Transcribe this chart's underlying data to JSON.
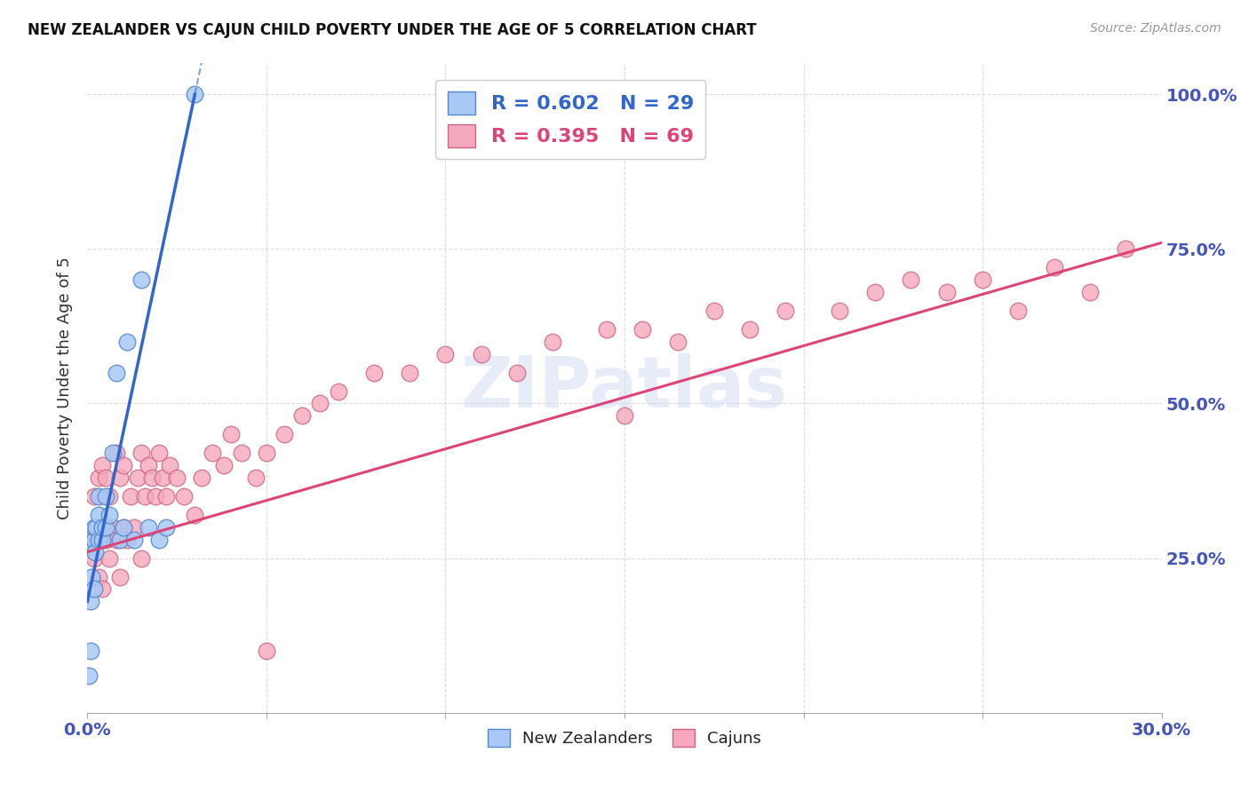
{
  "title": "NEW ZEALANDER VS CAJUN CHILD POVERTY UNDER THE AGE OF 5 CORRELATION CHART",
  "source": "Source: ZipAtlas.com",
  "ylabel": "Child Poverty Under the Age of 5",
  "watermark_text": "ZIPatlas",
  "nz_R": 0.602,
  "nz_N": 29,
  "cajun_R": 0.395,
  "cajun_N": 69,
  "nz_fill": "#a8c8f5",
  "nz_edge": "#5588cc",
  "cajun_fill": "#f5a8bb",
  "cajun_edge": "#cc6688",
  "nz_line_color": "#3366cc",
  "cajun_line_color": "#dd4477",
  "bg_color": "#ffffff",
  "title_color": "#111111",
  "source_color": "#999999",
  "axis_tick_color": "#4455bb",
  "ylabel_color": "#333333",
  "grid_color": "#dddddd",
  "xmin": 0.0,
  "xmax": 0.3,
  "ymin": 0.0,
  "ymax": 1.05,
  "nz_x": [
    0.0005,
    0.001,
    0.001,
    0.0012,
    0.0015,
    0.0018,
    0.002,
    0.002,
    0.0022,
    0.0025,
    0.003,
    0.003,
    0.0032,
    0.004,
    0.004,
    0.005,
    0.005,
    0.006,
    0.007,
    0.008,
    0.009,
    0.01,
    0.011,
    0.013,
    0.015,
    0.017,
    0.02,
    0.022,
    0.03
  ],
  "nz_y": [
    0.06,
    0.1,
    0.18,
    0.22,
    0.27,
    0.2,
    0.28,
    0.3,
    0.26,
    0.3,
    0.28,
    0.32,
    0.35,
    0.28,
    0.3,
    0.3,
    0.35,
    0.32,
    0.42,
    0.55,
    0.28,
    0.3,
    0.6,
    0.28,
    0.7,
    0.3,
    0.28,
    0.3,
    1.0
  ],
  "cajun_x": [
    0.001,
    0.002,
    0.002,
    0.003,
    0.003,
    0.004,
    0.004,
    0.005,
    0.005,
    0.006,
    0.006,
    0.007,
    0.008,
    0.008,
    0.009,
    0.009,
    0.01,
    0.01,
    0.011,
    0.012,
    0.013,
    0.014,
    0.015,
    0.015,
    0.016,
    0.017,
    0.018,
    0.019,
    0.02,
    0.021,
    0.022,
    0.023,
    0.025,
    0.027,
    0.03,
    0.032,
    0.035,
    0.038,
    0.04,
    0.043,
    0.047,
    0.05,
    0.055,
    0.06,
    0.065,
    0.07,
    0.08,
    0.09,
    0.1,
    0.11,
    0.12,
    0.13,
    0.145,
    0.155,
    0.165,
    0.175,
    0.185,
    0.195,
    0.21,
    0.22,
    0.23,
    0.24,
    0.25,
    0.26,
    0.27,
    0.28,
    0.29,
    0.15,
    0.05
  ],
  "cajun_y": [
    0.28,
    0.25,
    0.35,
    0.22,
    0.38,
    0.2,
    0.4,
    0.28,
    0.38,
    0.25,
    0.35,
    0.3,
    0.28,
    0.42,
    0.22,
    0.38,
    0.3,
    0.4,
    0.28,
    0.35,
    0.3,
    0.38,
    0.25,
    0.42,
    0.35,
    0.4,
    0.38,
    0.35,
    0.42,
    0.38,
    0.35,
    0.4,
    0.38,
    0.35,
    0.32,
    0.38,
    0.42,
    0.4,
    0.45,
    0.42,
    0.38,
    0.42,
    0.45,
    0.48,
    0.5,
    0.52,
    0.55,
    0.55,
    0.58,
    0.58,
    0.55,
    0.6,
    0.62,
    0.62,
    0.6,
    0.65,
    0.62,
    0.65,
    0.65,
    0.68,
    0.7,
    0.68,
    0.7,
    0.65,
    0.72,
    0.68,
    0.75,
    0.48,
    0.1
  ],
  "nz_trendline_x0": 0.0,
  "nz_trendline_x1": 0.03,
  "nz_trendline_y0": 0.18,
  "nz_trendline_y1": 1.0,
  "cajun_trendline_x0": 0.0,
  "cajun_trendline_x1": 0.3,
  "cajun_trendline_y0": 0.26,
  "cajun_trendline_y1": 0.76
}
